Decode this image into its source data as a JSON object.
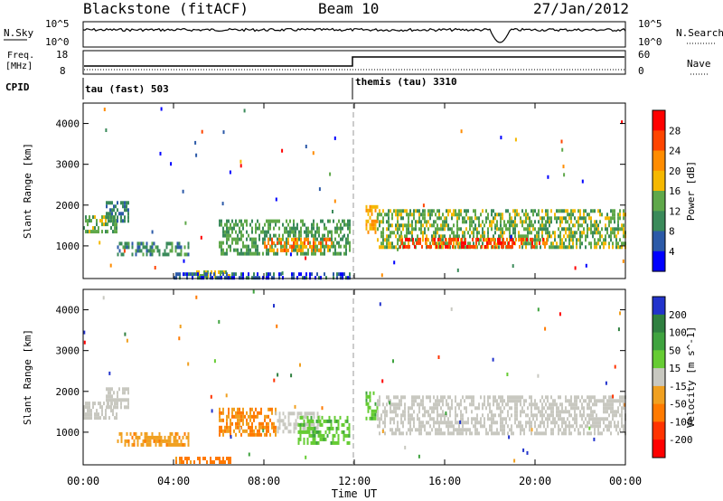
{
  "header": {
    "station": "Blackstone (fitACF)",
    "beam": "Beam 10",
    "date": "27/Jan/2012"
  },
  "strip": {
    "nsky_label": "N.Sky",
    "nsearch_label": "N.Search",
    "freq_label_line1": "Freq.",
    "freq_label_line2": "[MHz]",
    "nave_label": "Nave",
    "cpid_label": "CPID",
    "noise_ticks_left": [
      "10^5",
      "10^0"
    ],
    "noise_ticks_right": [
      "10^5",
      "10^0"
    ],
    "freq_ticks": [
      "18",
      "8"
    ],
    "nave_ticks": [
      "60",
      "0"
    ],
    "cpid_segments": [
      "tau (fast) 503",
      "themis (tau) 3310"
    ]
  },
  "colors": {
    "power": [
      "#0000ff",
      "#2c5aa8",
      "#3a8a5a",
      "#5fa84a",
      "#f5b800",
      "#ff8c00",
      "#ff4500",
      "#ff0000"
    ],
    "velocity": [
      "#2233cc",
      "#2f8040",
      "#3fa33f",
      "#66cc33",
      "#c8c8c0",
      "#f0a020",
      "#ff7a00",
      "#ff3300",
      "#ff0000"
    ]
  },
  "chart_data": [
    {
      "type": "heatmap",
      "title": "Power",
      "ylabel": "Slant Range [km]",
      "xlabel": "",
      "xlim": [
        "00:00",
        "24:00"
      ],
      "ylim": [
        200,
        4500
      ],
      "xticks": [
        "00:00",
        "04:00",
        "08:00",
        "12:00",
        "16:00",
        "20:00",
        "00:00"
      ],
      "yticks": [
        1000,
        2000,
        3000,
        4000
      ],
      "colorbar_label": "Power [dB]",
      "colorbar_ticks": [
        4,
        8,
        12,
        16,
        20,
        24,
        28
      ],
      "regions": [
        {
          "t": [
            0.0,
            1.5
          ],
          "range": [
            1350,
            1750
          ],
          "value": 14
        },
        {
          "t": [
            1.0,
            2.0
          ],
          "range": [
            1600,
            2100
          ],
          "value": 8
        },
        {
          "t": [
            1.5,
            4.7
          ],
          "range": [
            750,
            1100
          ],
          "value": 10
        },
        {
          "t": [
            5.0,
            6.5
          ],
          "range": [
            280,
            400
          ],
          "value": 16
        },
        {
          "t": [
            6.0,
            11.8
          ],
          "range": [
            800,
            1650
          ],
          "value": 12
        },
        {
          "t": [
            8.0,
            11.0
          ],
          "range": [
            900,
            1200
          ],
          "value": 22
        },
        {
          "t": [
            4.0,
            11.8
          ],
          "range": [
            220,
            350
          ],
          "value": 6
        },
        {
          "t": [
            12.5,
            13.0
          ],
          "range": [
            1300,
            2000
          ],
          "value": 20
        },
        {
          "t": [
            13.0,
            24.0
          ],
          "range": [
            1000,
            1900
          ],
          "value": 14
        },
        {
          "t": [
            14.0,
            20.5
          ],
          "range": [
            1000,
            1200
          ],
          "value": 26
        }
      ]
    },
    {
      "type": "heatmap",
      "title": "Velocity",
      "ylabel": "Slant Range [km]",
      "xlabel": "Time UT",
      "xlim": [
        "00:00",
        "24:00"
      ],
      "ylim": [
        200,
        4500
      ],
      "xticks": [
        "00:00",
        "04:00",
        "08:00",
        "12:00",
        "16:00",
        "20:00",
        "00:00"
      ],
      "yticks": [
        1000,
        2000,
        3000,
        4000
      ],
      "colorbar_label": "Velocity [m s^-1]",
      "colorbar_ticks": [
        "200",
        "100",
        "50",
        "15",
        "-15",
        "-50",
        "-100",
        "-200"
      ],
      "regions": [
        {
          "t": [
            0.0,
            1.5
          ],
          "range": [
            1350,
            1750
          ],
          "value": 0
        },
        {
          "t": [
            1.0,
            2.0
          ],
          "range": [
            1600,
            2100
          ],
          "value": 0
        },
        {
          "t": [
            1.5,
            4.7
          ],
          "range": [
            700,
            1000
          ],
          "value": -40
        },
        {
          "t": [
            4.0,
            6.5
          ],
          "range": [
            250,
            400
          ],
          "value": -60
        },
        {
          "t": [
            6.0,
            8.5
          ],
          "range": [
            900,
            1600
          ],
          "value": -50
        },
        {
          "t": [
            8.5,
            10.5
          ],
          "range": [
            1000,
            1500
          ],
          "value": 0
        },
        {
          "t": [
            9.5,
            11.8
          ],
          "range": [
            700,
            1400
          ],
          "value": 40
        },
        {
          "t": [
            12.5,
            13.0
          ],
          "range": [
            1300,
            2000
          ],
          "value": 40
        },
        {
          "t": [
            13.0,
            24.0
          ],
          "range": [
            1000,
            1900
          ],
          "value": 0
        }
      ]
    }
  ]
}
